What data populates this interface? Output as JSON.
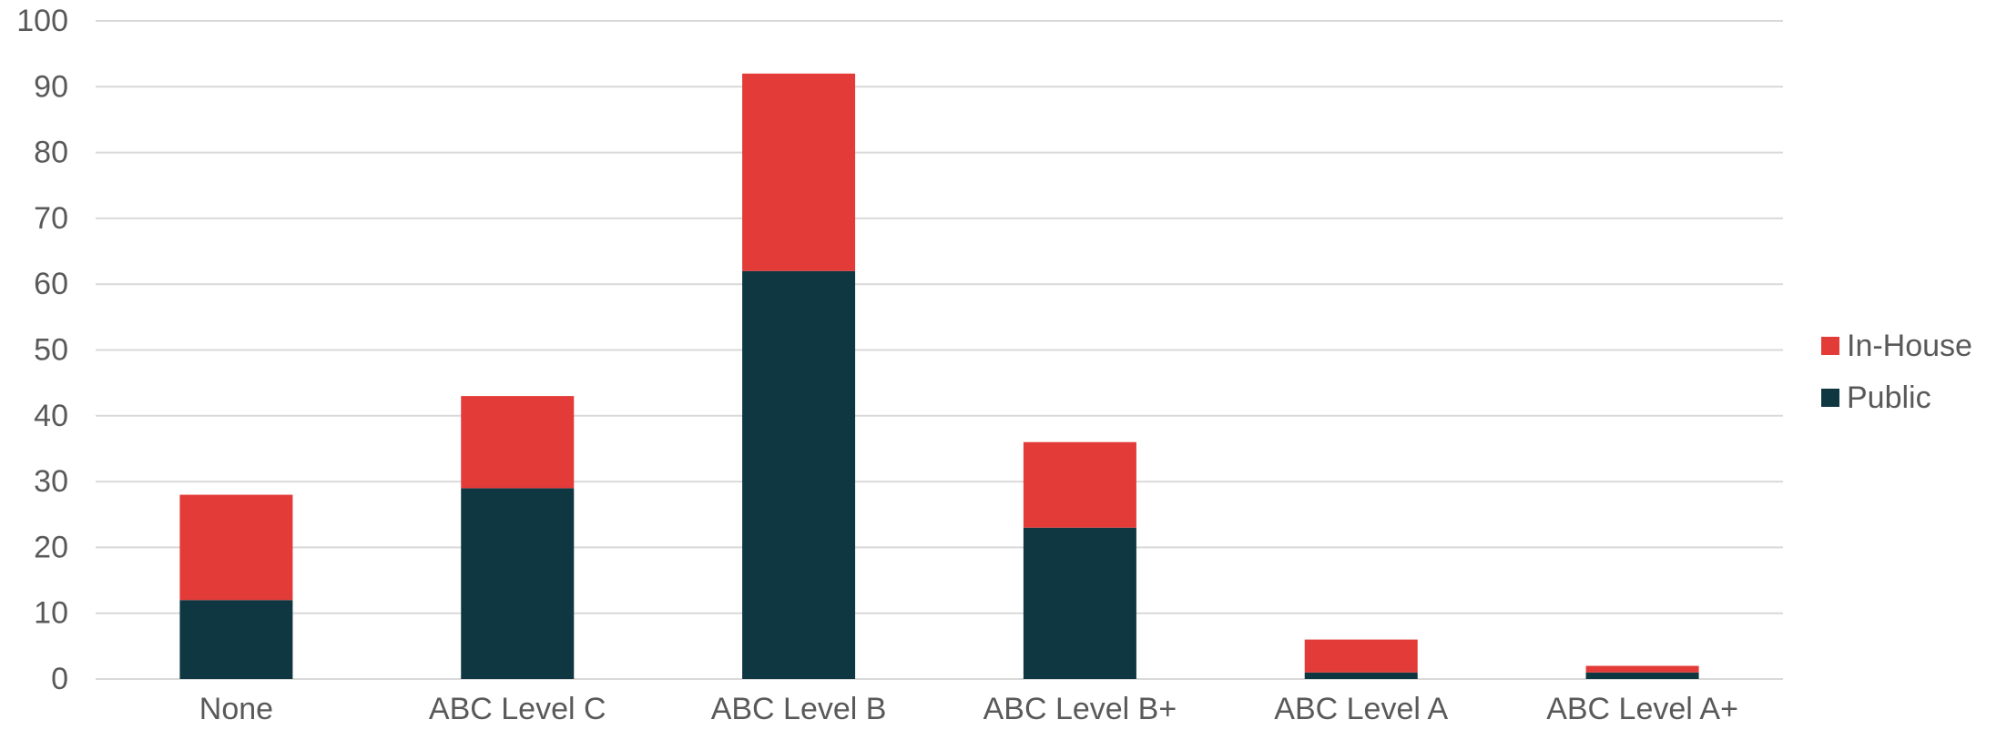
{
  "chart_data": {
    "type": "bar",
    "stacked": true,
    "categories": [
      "None",
      "ABC Level C",
      "ABC Level B",
      "ABC Level B+",
      "ABC Level A",
      "ABC Level A+"
    ],
    "series": [
      {
        "name": "Public",
        "color": "#0f3742",
        "values": [
          12,
          29,
          62,
          23,
          1,
          1
        ]
      },
      {
        "name": "In-House",
        "color": "#e33b38",
        "values": [
          16,
          14,
          30,
          13,
          5,
          1
        ]
      }
    ],
    "ylim": [
      0,
      100
    ],
    "yticks": [
      0,
      10,
      20,
      30,
      40,
      50,
      60,
      70,
      80,
      90,
      100
    ],
    "title": "",
    "xlabel": "",
    "ylabel": "",
    "grid": true,
    "legend_position": "right",
    "legend_order": [
      "In-House",
      "Public"
    ],
    "gridline_color": "#d9d9d9",
    "text_color": "#595959"
  }
}
